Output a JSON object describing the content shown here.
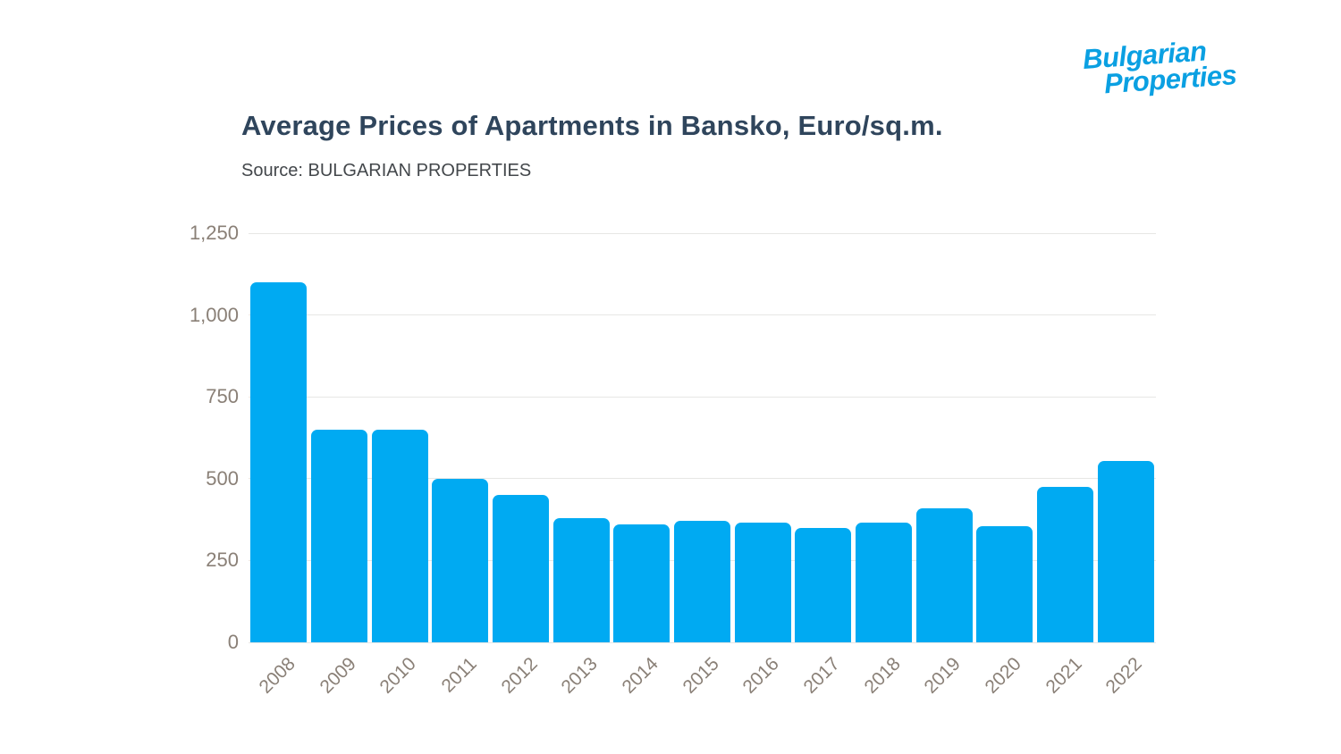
{
  "page": {
    "background": "#ffffff"
  },
  "logo": {
    "line1": "Bulgarian",
    "line2": "Properties",
    "color": "#0aa0e2"
  },
  "header": {
    "title": "Average Prices of Apartments in Bansko, Euro/sq.m.",
    "source": "Source: BULGARIAN PROPERTIES",
    "title_color": "#2f455c",
    "source_color": "#43474b"
  },
  "chart_data": {
    "type": "bar",
    "title": "Average Prices of Apartments in Bansko, Euro/sq.m.",
    "subtitle": "Source: BULGARIAN PROPERTIES",
    "xlabel": "",
    "ylabel": "",
    "categories": [
      "2008",
      "2009",
      "2010",
      "2011",
      "2012",
      "2013",
      "2014",
      "2015",
      "2016",
      "2017",
      "2018",
      "2019",
      "2020",
      "2021",
      "2022"
    ],
    "values": [
      1100,
      650,
      650,
      500,
      450,
      380,
      360,
      370,
      365,
      350,
      365,
      410,
      355,
      475,
      555
    ],
    "ylim": [
      0,
      1250
    ],
    "ytick_values": [
      0,
      250,
      500,
      750,
      1000,
      1250
    ],
    "ytick_labels": [
      "0",
      "250",
      "500",
      "750",
      "1,000",
      "1,250"
    ],
    "grid": true,
    "legend": "none",
    "bar_color": "#00aaf2",
    "gridline_color": "#e7e7e5",
    "axis_label_color": "#8a8077"
  }
}
